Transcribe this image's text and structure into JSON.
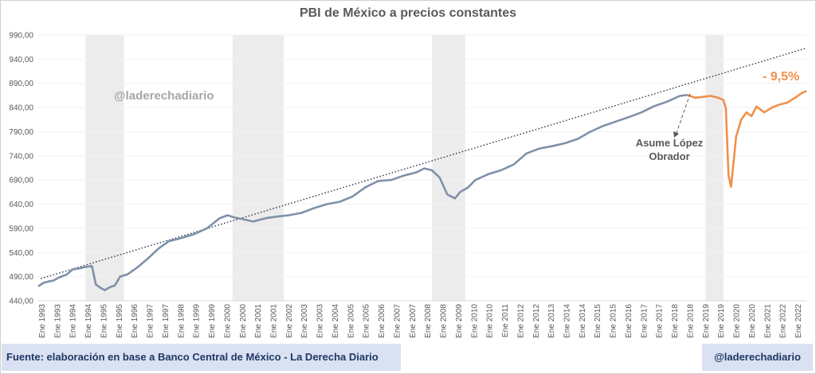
{
  "footer": {
    "source": "Fuente: elaboración en base a Banco Central de México - La Derecha Diario",
    "handle": "@laderechadiario"
  },
  "chart_data": {
    "type": "line",
    "title": "PBI de México a precios constantes",
    "xlabel": "",
    "ylabel": "",
    "ylim": [
      440,
      990
    ],
    "y_ticks": [
      "440,00",
      "490,00",
      "540,00",
      "590,00",
      "640,00",
      "690,00",
      "740,00",
      "790,00",
      "840,00",
      "890,00",
      "940,00",
      "990,00"
    ],
    "x_tick_labels": [
      "Ene 1993",
      "Ene 1993",
      "Ene 1994",
      "Ene 1994",
      "Ene 1995",
      "Ene 1995",
      "Ene 1996",
      "Ene 1997",
      "Ene 1997",
      "Ene 1998",
      "Ene 1999",
      "Ene 1999",
      "Ene 2000",
      "Ene 2000",
      "Ene 2001",
      "Ene 2001",
      "Ene 2002",
      "Ene 2003",
      "Ene 2003",
      "Ene 2004",
      "Ene 2005",
      "Ene 2005",
      "Ene 2006",
      "Ene 2007",
      "Ene 2007",
      "Ene 2008",
      "Ene 2008",
      "Ene 2009",
      "Ene 2010",
      "Ene 2010",
      "Ene 2011",
      "Ene 2012",
      "Ene 2012",
      "Ene 2013",
      "Ene 2014",
      "Ene 2014",
      "Ene 2015",
      "Ene 2015",
      "Ene 2016",
      "Ene 2017",
      "Ene 2017",
      "Ene 2018",
      "Ene 2018",
      "Ene 2019",
      "Ene 2019",
      "Ene 2020",
      "Ene 2020",
      "Ene 2021",
      "Ene 2022",
      "Ene 2022"
    ],
    "recessions": [
      [
        1994.75,
        1996.25
      ],
      [
        2000.5,
        2002.5
      ],
      [
        2008.3,
        2009.6
      ],
      [
        2019.0,
        2019.7
      ]
    ],
    "series": [
      {
        "color": "#7f91a8",
        "x": [
          1992.9,
          1993.1,
          1993.3,
          1993.5,
          1993.7,
          1994.0,
          1994.25,
          1994.5,
          1994.75,
          1995.0,
          1995.15,
          1995.3,
          1995.5,
          1995.7,
          1995.9,
          1996.1,
          1996.4,
          1996.8,
          1997.2,
          1997.6,
          1998.0,
          1998.5,
          1999.0,
          1999.5,
          2000.0,
          2000.3,
          2000.6,
          2000.9,
          2001.3,
          2001.8,
          2002.2,
          2002.7,
          2003.2,
          2003.7,
          2004.2,
          2004.7,
          2005.2,
          2005.7,
          2006.2,
          2006.7,
          2007.2,
          2007.7,
          2008.0,
          2008.3,
          2008.6,
          2008.9,
          2009.2,
          2009.4,
          2009.7,
          2010.0,
          2010.5,
          2011.0,
          2011.5,
          2012.0,
          2012.5,
          2013.0,
          2013.5,
          2014.0,
          2014.5,
          2015.0,
          2015.5,
          2016.0,
          2016.5,
          2017.0,
          2017.5,
          2018.0,
          2018.3
        ],
        "values": [
          470,
          477,
          480,
          482,
          488,
          494,
          505,
          507,
          510,
          512,
          474,
          468,
          462,
          468,
          472,
          490,
          495,
          510,
          528,
          548,
          563,
          570,
          578,
          590,
          611,
          617,
          612,
          609,
          604,
          611,
          614,
          617,
          622,
          632,
          640,
          645,
          656,
          675,
          688,
          690,
          699,
          706,
          714,
          710,
          695,
          660,
          652,
          665,
          674,
          690,
          702,
          710,
          722,
          745,
          755,
          760,
          766,
          775,
          790,
          802,
          811,
          820,
          830,
          843,
          852,
          864,
          866
        ]
      },
      {
        "color": "#f0904a",
        "x": [
          2018.3,
          2018.6,
          2018.9,
          2019.2,
          2019.5,
          2019.7,
          2019.8,
          2019.9,
          2020.0,
          2020.2,
          2020.4,
          2020.6,
          2020.8,
          2021.0,
          2021.3,
          2021.6,
          2021.9,
          2022.2,
          2022.5,
          2022.8,
          2022.95
        ],
        "values": [
          866,
          860,
          862,
          864,
          860,
          856,
          838,
          700,
          676,
          780,
          815,
          830,
          822,
          842,
          830,
          840,
          846,
          850,
          860,
          871,
          874
        ]
      }
    ],
    "trend_line": {
      "from": [
        1993.0,
        486
      ],
      "to": [
        2022.95,
        963
      ]
    },
    "annotations": [
      {
        "id": "watermark",
        "text": "@laderechadiario"
      },
      {
        "id": "amlo_1",
        "text": "Asume López"
      },
      {
        "id": "amlo_2",
        "text": "Obrador"
      },
      {
        "id": "drop",
        "text": "- 9,5%"
      }
    ]
  }
}
